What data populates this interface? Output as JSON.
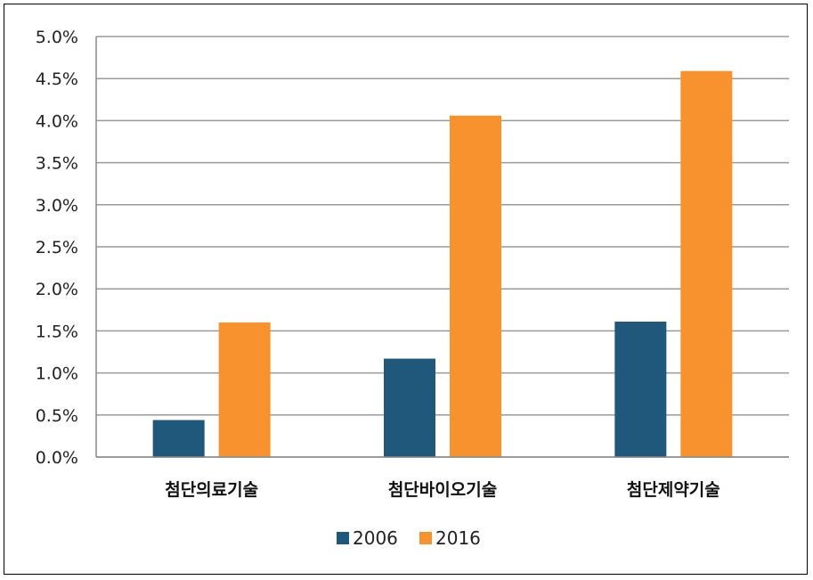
{
  "chart_data": {
    "type": "bar",
    "categories": [
      "첨단의료기술",
      "첨단바이오기술",
      "첨단제약기술"
    ],
    "series": [
      {
        "name": "2006",
        "values": [
          0.44,
          1.17,
          1.61
        ],
        "color": "#1f587a"
      },
      {
        "name": "2016",
        "values": [
          1.6,
          4.06,
          4.59
        ],
        "color": "#f7922e"
      }
    ],
    "yticks": [
      "0.0%",
      "0.5%",
      "1.0%",
      "1.5%",
      "2.0%",
      "2.5%",
      "3.0%",
      "3.5%",
      "4.0%",
      "4.5%",
      "5.0%"
    ],
    "ylim": [
      0,
      5
    ],
    "grid": true,
    "legend_position": "bottom",
    "title": "",
    "xlabel": "",
    "ylabel": ""
  }
}
